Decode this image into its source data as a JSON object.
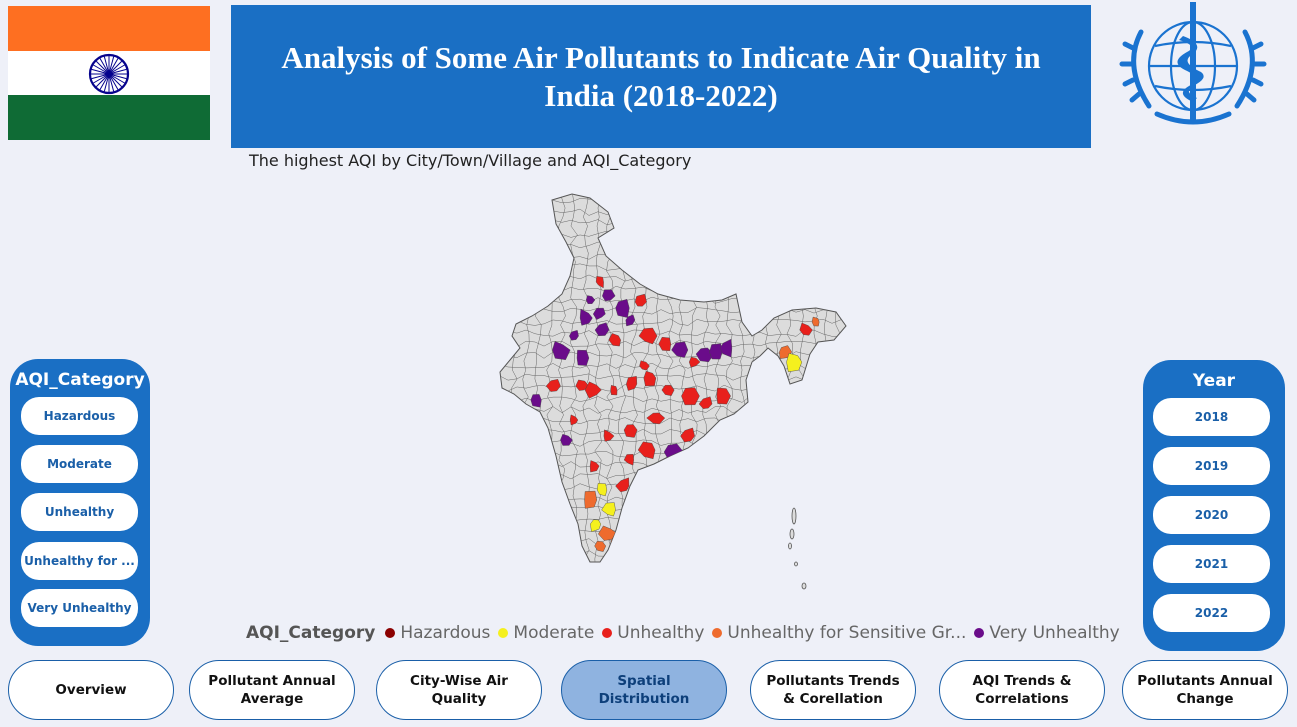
{
  "header": {
    "title": "Analysis of Some Air Pollutants to Indicate Air Quality in India (2018-2022)"
  },
  "map": {
    "title": "The highest AQI by City/Town/Village and AQI_Category"
  },
  "legend": {
    "title": "AQI_Category",
    "items": [
      {
        "label": "Hazardous",
        "color": "#8b0000"
      },
      {
        "label": "Moderate",
        "color": "#f5f01e"
      },
      {
        "label": "Unhealthy",
        "color": "#e8201c"
      },
      {
        "label": "Unhealthy for Sensitive Gr...",
        "color": "#ee6b2e"
      },
      {
        "label": "Very Unhealthy",
        "color": "#6a0c8a"
      }
    ]
  },
  "aqi_slicer": {
    "title": "AQI_Category",
    "options": [
      "Hazardous",
      "Moderate",
      "Unhealthy",
      "Unhealthy for ...",
      "Very Unhealthy"
    ]
  },
  "year_slicer": {
    "title": "Year",
    "options": [
      "2018",
      "2019",
      "2020",
      "2021",
      "2022"
    ]
  },
  "nav": {
    "buttons": [
      {
        "label": "Overview",
        "active": false
      },
      {
        "label": "Pollutant Annual Average",
        "active": false
      },
      {
        "label": "City-Wise Air Quality",
        "active": false
      },
      {
        "label": "Spatial Distribution",
        "active": true
      },
      {
        "label": "Pollutants Trends & Corellation",
        "active": false
      },
      {
        "label": "AQI Trends & Correlations",
        "active": false
      },
      {
        "label": "Pollutants Annual Change",
        "active": false
      }
    ]
  },
  "colors": {
    "accent": "#1a6fc4",
    "background": "#eef0f8"
  }
}
